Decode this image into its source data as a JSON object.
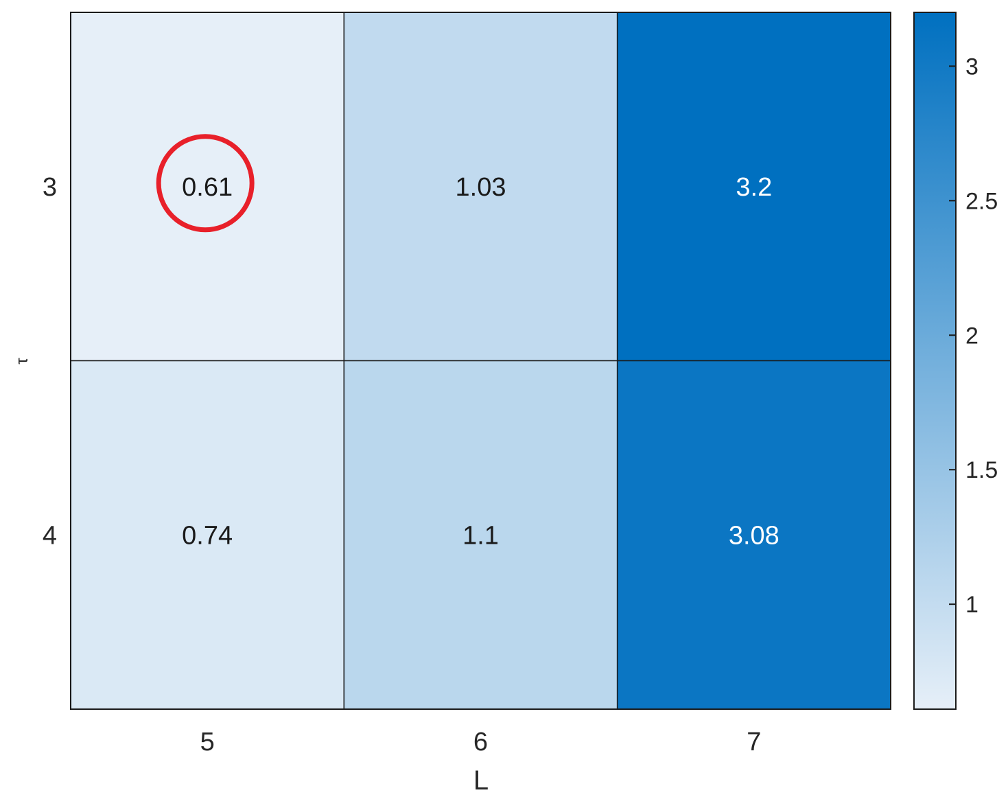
{
  "chart_data": {
    "type": "heatmap",
    "title": "",
    "xlabel": "L",
    "ylabel": "τ",
    "x_categories": [
      "5",
      "6",
      "7"
    ],
    "y_categories": [
      "3",
      "4"
    ],
    "values": [
      [
        0.61,
        1.03,
        3.2
      ],
      [
        0.74,
        1.1,
        3.08
      ]
    ],
    "color_range": [
      0.61,
      3.2
    ],
    "colormap": {
      "low": "#e6eff8",
      "high": "#0070c0"
    },
    "colorbar": {
      "ticks": [
        1,
        1.5,
        2,
        2.5,
        3
      ],
      "tick_labels": [
        "1",
        "1.5",
        "2",
        "2.5",
        "3"
      ]
    },
    "highlight": {
      "row": 0,
      "col": 0,
      "color": "#e8202a"
    },
    "grid": true
  }
}
